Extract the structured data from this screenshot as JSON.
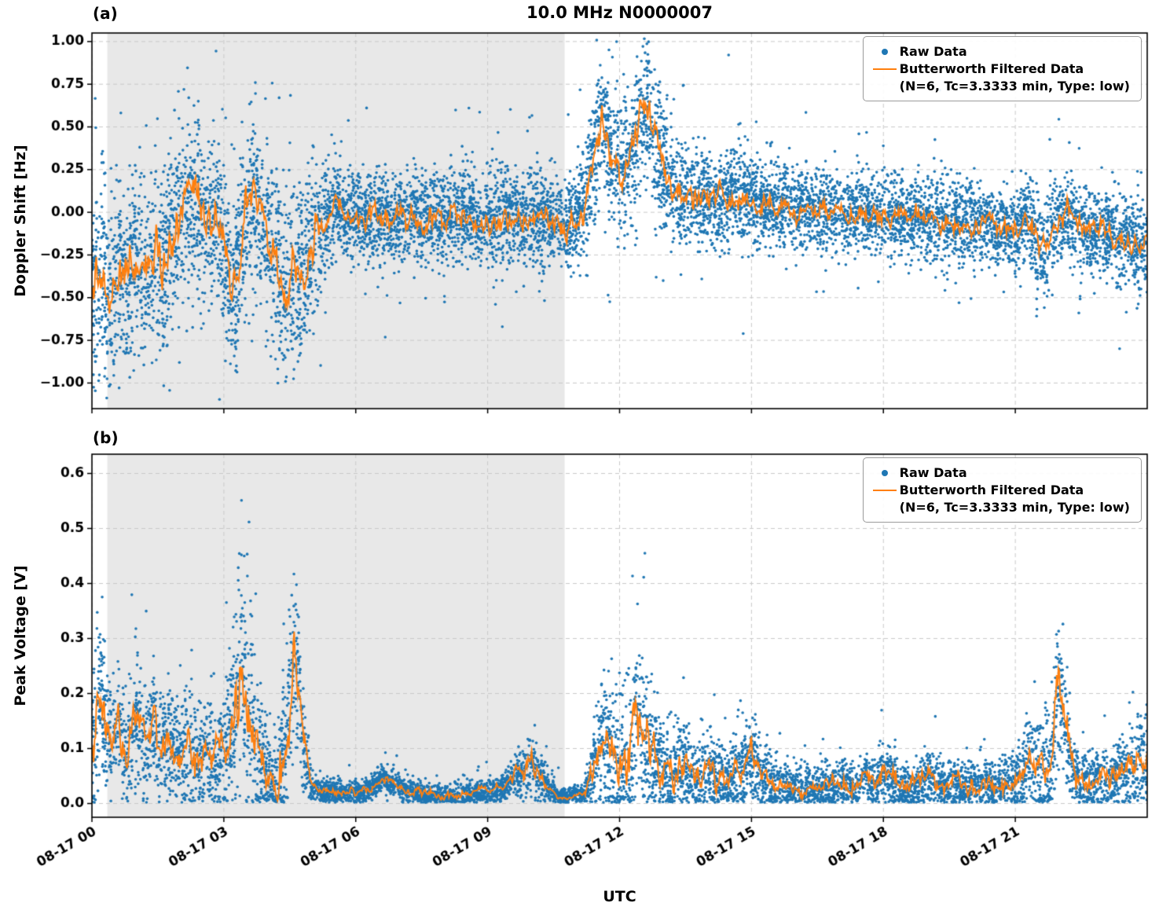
{
  "title": "10.0 MHz N0000007",
  "xlabel": "UTC",
  "legend": {
    "raw_label": "Raw Data",
    "filtered_label_line1": "Butterworth Filtered Data",
    "filtered_label_line2": "(N=6, Tc=3.3333 min, Type: low)"
  },
  "style": {
    "raw_color": "#1f77b4",
    "filtered_color": "#ff7f0e",
    "shade_color": "#e8e8e8",
    "grid_color": "#c9c9c9",
    "axis_color": "#000000",
    "background": "#ffffff"
  },
  "chart_data": [
    {
      "panel_label": "(a)",
      "type": "scatter+line",
      "ylabel": "Doppler Shift [Hz]",
      "x_unit": "hours since 08-17 00:00 UTC",
      "xlim": [
        0,
        24
      ],
      "ylim": [
        -1.15,
        1.05
      ],
      "grid": "dashed",
      "legend_position": "upper right",
      "show_x_tick_labels": false,
      "shaded_region": {
        "start": 0.35,
        "end": 10.75
      },
      "xticks": [
        {
          "t": 0,
          "label": "08-17 00"
        },
        {
          "t": 3,
          "label": "08-17 03"
        },
        {
          "t": 6,
          "label": "08-17 06"
        },
        {
          "t": 9,
          "label": "08-17 09"
        },
        {
          "t": 12,
          "label": "08-17 12"
        },
        {
          "t": 15,
          "label": "08-17 15"
        },
        {
          "t": 18,
          "label": "08-17 18"
        },
        {
          "t": 21,
          "label": "08-17 21"
        }
      ],
      "yticks": [
        {
          "v": 1.0,
          "label": "1.00"
        },
        {
          "v": 0.75,
          "label": "0.75"
        },
        {
          "v": 0.5,
          "label": "0.50"
        },
        {
          "v": 0.25,
          "label": "0.25"
        },
        {
          "v": 0.0,
          "label": "0.00"
        },
        {
          "v": -0.25,
          "label": "−0.25"
        },
        {
          "v": -0.5,
          "label": "−0.50"
        },
        {
          "v": -0.75,
          "label": "−0.75"
        },
        {
          "v": -1.0,
          "label": "−1.00"
        }
      ],
      "series": [
        {
          "name": "Raw Data",
          "type": "scatter"
        },
        {
          "name": "Butterworth Filtered Data (N=6, Tc=3.3333 min, Type: low)",
          "type": "line"
        }
      ],
      "filtered": {
        "t0": 0,
        "dt": 0.2,
        "values": [
          -0.45,
          -0.3,
          -0.5,
          -0.3,
          -0.42,
          -0.25,
          -0.35,
          -0.2,
          -0.3,
          -0.15,
          -0.05,
          0.1,
          0.05,
          -0.1,
          0.0,
          -0.2,
          -0.45,
          -0.2,
          0.1,
          0.05,
          -0.15,
          -0.3,
          -0.5,
          -0.3,
          -0.35,
          -0.2,
          -0.1,
          0.0,
          0.05,
          -0.05,
          0.0,
          -0.05,
          0.02,
          -0.03,
          -0.05,
          0.0,
          -0.05,
          -0.02,
          -0.06,
          -0.03,
          -0.05,
          0.0,
          -0.04,
          -0.02,
          -0.06,
          -0.03,
          -0.05,
          0.0,
          -0.04,
          -0.06,
          -0.02,
          -0.05,
          -0.03,
          -0.05,
          -0.1,
          -0.05,
          0.05,
          0.3,
          0.55,
          0.35,
          0.25,
          0.3,
          0.45,
          0.63,
          0.4,
          0.25,
          0.15,
          0.1,
          0.12,
          0.08,
          0.1,
          0.05,
          0.08,
          0.1,
          0.05,
          0.08,
          0.04,
          0.06,
          0.03,
          0.05,
          0.02,
          0.04,
          0.0,
          0.03,
          0.0,
          0.02,
          -0.02,
          0.0,
          -0.03,
          0.0,
          -0.02,
          -0.04,
          -0.02,
          -0.05,
          -0.03,
          -0.05,
          -0.04,
          -0.06,
          -0.05,
          -0.07,
          -0.05,
          -0.08,
          -0.06,
          -0.1,
          -0.08,
          -0.12,
          -0.05,
          -0.1,
          -0.25,
          -0.15,
          -0.05,
          0.0,
          -0.08,
          -0.12,
          -0.1,
          -0.15,
          -0.12,
          -0.18,
          -0.15,
          -0.2,
          -0.18
        ]
      },
      "spread_points": [
        [
          0,
          0.26
        ],
        [
          4.8,
          0.26
        ],
        [
          5.6,
          0.13
        ],
        [
          11.0,
          0.13
        ],
        [
          11.4,
          0.2
        ],
        [
          12.9,
          0.2
        ],
        [
          13.5,
          0.14
        ],
        [
          16,
          0.12
        ],
        [
          21,
          0.11
        ],
        [
          21.5,
          0.16
        ],
        [
          22.2,
          0.12
        ],
        [
          24,
          0.12
        ]
      ],
      "n_points": 9500,
      "outlier_prob": 0.05,
      "clamp_min": null,
      "seed": 7,
      "jitter": 0.22
    },
    {
      "panel_label": "(b)",
      "type": "scatter+line",
      "ylabel": "Peak Voltage [V]",
      "x_unit": "hours since 08-17 00:00 UTC",
      "xlim": [
        0,
        24
      ],
      "ylim": [
        -0.025,
        0.635
      ],
      "grid": "dashed",
      "legend_position": "upper right",
      "show_x_tick_labels": true,
      "shaded_region": {
        "start": 0.35,
        "end": 10.75
      },
      "xticks": [
        {
          "t": 0,
          "label": "08-17 00"
        },
        {
          "t": 3,
          "label": "08-17 03"
        },
        {
          "t": 6,
          "label": "08-17 06"
        },
        {
          "t": 9,
          "label": "08-17 09"
        },
        {
          "t": 12,
          "label": "08-17 12"
        },
        {
          "t": 15,
          "label": "08-17 15"
        },
        {
          "t": 18,
          "label": "08-17 18"
        },
        {
          "t": 21,
          "label": "08-17 21"
        }
      ],
      "yticks": [
        {
          "v": 0.6,
          "label": "0.6"
        },
        {
          "v": 0.5,
          "label": "0.5"
        },
        {
          "v": 0.4,
          "label": "0.4"
        },
        {
          "v": 0.3,
          "label": "0.3"
        },
        {
          "v": 0.2,
          "label": "0.2"
        },
        {
          "v": 0.1,
          "label": "0.1"
        },
        {
          "v": 0.0,
          "label": "0.0"
        }
      ],
      "series": [
        {
          "name": "Raw Data",
          "type": "scatter"
        },
        {
          "name": "Butterworth Filtered Data (N=6, Tc=3.3333 min, Type: low)",
          "type": "line"
        }
      ],
      "filtered": {
        "t0": 0,
        "dt": 0.2,
        "values": [
          0.08,
          0.2,
          0.1,
          0.15,
          0.08,
          0.16,
          0.1,
          0.15,
          0.09,
          0.13,
          0.08,
          0.12,
          0.07,
          0.1,
          0.08,
          0.1,
          0.15,
          0.23,
          0.18,
          0.08,
          0.05,
          0.04,
          0.1,
          0.3,
          0.12,
          0.03,
          0.02,
          0.02,
          0.02,
          0.02,
          0.02,
          0.025,
          0.03,
          0.045,
          0.04,
          0.03,
          0.02,
          0.02,
          0.015,
          0.015,
          0.01,
          0.015,
          0.015,
          0.02,
          0.02,
          0.02,
          0.025,
          0.03,
          0.05,
          0.06,
          0.07,
          0.05,
          0.03,
          0.01,
          0.01,
          0.015,
          0.02,
          0.06,
          0.13,
          0.08,
          0.06,
          0.08,
          0.17,
          0.1,
          0.08,
          0.06,
          0.05,
          0.08,
          0.06,
          0.05,
          0.07,
          0.05,
          0.04,
          0.05,
          0.06,
          0.09,
          0.05,
          0.04,
          0.03,
          0.03,
          0.025,
          0.03,
          0.025,
          0.03,
          0.025,
          0.04,
          0.03,
          0.025,
          0.05,
          0.03,
          0.06,
          0.04,
          0.03,
          0.025,
          0.03,
          0.05,
          0.035,
          0.03,
          0.04,
          0.03,
          0.035,
          0.03,
          0.04,
          0.03,
          0.05,
          0.04,
          0.06,
          0.08,
          0.05,
          0.05,
          0.21,
          0.1,
          0.04,
          0.035,
          0.04,
          0.05,
          0.04,
          0.06,
          0.05,
          0.07,
          0.09
        ]
      },
      "spread_points": [
        [
          0,
          0.09
        ],
        [
          0.4,
          0.055
        ],
        [
          3.0,
          0.05
        ],
        [
          3.4,
          0.12
        ],
        [
          4.0,
          0.04
        ],
        [
          4.6,
          0.08
        ],
        [
          5.0,
          0.012
        ],
        [
          9.4,
          0.012
        ],
        [
          10.0,
          0.03
        ],
        [
          10.6,
          0.008
        ],
        [
          11.2,
          0.012
        ],
        [
          11.6,
          0.06
        ],
        [
          12.4,
          0.08
        ],
        [
          13.0,
          0.04
        ],
        [
          15.0,
          0.035
        ],
        [
          16.0,
          0.02
        ],
        [
          21.0,
          0.025
        ],
        [
          21.4,
          0.05
        ],
        [
          22.0,
          0.07
        ],
        [
          22.4,
          0.03
        ],
        [
          23.0,
          0.025
        ],
        [
          24,
          0.045
        ]
      ],
      "n_points": 8000,
      "outlier_prob": 0.05,
      "clamp_min": 0.002,
      "seed": 11,
      "jitter": 0.3
    }
  ]
}
